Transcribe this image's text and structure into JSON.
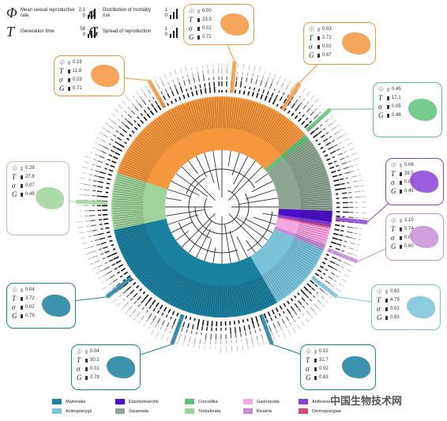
{
  "legend_top": {
    "phi": {
      "symbol": "Φ",
      "label": "Mean sexual reproductive rate",
      "max": "2.1",
      "min": "0"
    },
    "sigma": {
      "symbol": "σ",
      "label": "Distribution of mortality risk",
      "max": "1",
      "min": "0"
    },
    "T": {
      "symbol": "T",
      "label": "Generation time",
      "max": "58",
      "min": "0"
    },
    "G": {
      "symbol": "G",
      "label": "Spread of reproduction",
      "max": "1",
      "min": "0"
    }
  },
  "species_boxes": [
    {
      "id": "bird",
      "color": "#f5973f",
      "phi": "0.19",
      "T": "11.8",
      "sigma": "0.03",
      "G": "0.71"
    },
    {
      "id": "top",
      "color": "#f5973f",
      "phi": "0.00",
      "T": "23.3",
      "sigma": "0.02",
      "G": "0.72"
    },
    {
      "id": "turkey",
      "color": "#f5973f",
      "phi": "0.03",
      "T": "2.72",
      "sigma": "0.02",
      "G": "0.67"
    },
    {
      "id": "croc",
      "color": "#5cc47a",
      "phi": "0.45",
      "T": "17.1",
      "sigma": "0.05",
      "G": "0.48"
    },
    {
      "id": "tortoise",
      "color": "#9ed49a",
      "phi": "0.29",
      "T": "27.8",
      "sigma": "0.07",
      "G": "0.48"
    },
    {
      "id": "coral",
      "color": "#8a3fd8",
      "phi": "0.06",
      "T": "39.5",
      "sigma": "0.04",
      "G": "0.45"
    },
    {
      "id": "clam",
      "color": "#c58fd8",
      "phi": "2.10",
      "T": "5.74",
      "sigma": "0.07",
      "G": "0.60"
    },
    {
      "id": "otter",
      "color": "#1b7fa0",
      "phi": "0.04",
      "T": "3.72",
      "sigma": "0.02",
      "G": "0.79"
    },
    {
      "id": "fish",
      "color": "#79c3d9",
      "phi": "0.63",
      "T": "4.79",
      "sigma": "0.02",
      "G": "0.83"
    },
    {
      "id": "human",
      "color": "#1b7fa0",
      "phi": "0.04",
      "T": "30.1",
      "sigma": "0.01",
      "G": "0.79"
    },
    {
      "id": "elephant",
      "color": "#1b7fa0",
      "phi": "0.02",
      "T": "31.7",
      "sigma": "0.02",
      "G": "0.63"
    }
  ],
  "legend_bottom": [
    {
      "label": "Mammalia",
      "color": "#1b7fa0"
    },
    {
      "label": "Actinopterygii",
      "color": "#79c3d9"
    },
    {
      "label": "Elasmobranchii",
      "color": "#4b10c8"
    },
    {
      "label": "Squamata",
      "color": "#8fa593"
    },
    {
      "label": "Crocodilia",
      "color": "#5cc47a"
    },
    {
      "label": "Testudinata",
      "color": "#9ed49a"
    },
    {
      "label": "Gastropoda",
      "color": "#f7a6e0"
    },
    {
      "label": "Bivalvia",
      "color": "#c58fd8"
    },
    {
      "label": "Anthozoa",
      "color": "#8a3fd8"
    },
    {
      "label": "Demospongiae",
      "color": "#d8487e"
    }
  ],
  "watermark": "中国生物技术网"
}
